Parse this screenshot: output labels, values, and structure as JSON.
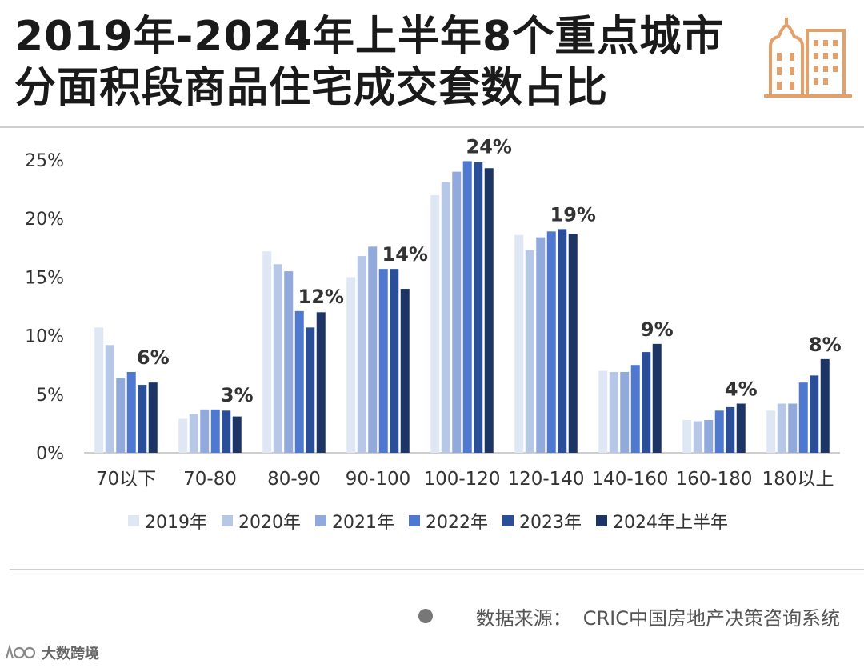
{
  "title": "2019年-2024年上半年8个重点城市分面积段商品住宅成交套数占比",
  "source": {
    "label": "数据来源：",
    "text": "CRIC中国房地产决策咨询系统"
  },
  "brand": {
    "name": "大数跨境",
    "logo_icon": "dashuju-logo-icon"
  },
  "title_icon": "building-icon",
  "chart_data": {
    "type": "bar",
    "title": "",
    "xlabel": "",
    "ylabel": "",
    "ylim": [
      0,
      25
    ],
    "yticks": [
      0,
      5,
      10,
      15,
      20,
      25
    ],
    "ytick_labels": [
      "0%",
      "5%",
      "10%",
      "15%",
      "20%",
      "25%"
    ],
    "grid": false,
    "legend_position": "bottom",
    "categories": [
      "70以下",
      "70-80",
      "80-90",
      "90-100",
      "100-120",
      "120-140",
      "140-160",
      "160-180",
      "180以上"
    ],
    "series": [
      {
        "name": "2019年",
        "color": "#dfe7f5",
        "values": [
          10.7,
          2.9,
          17.2,
          15.0,
          22.0,
          18.6,
          7.0,
          2.8,
          3.6
        ]
      },
      {
        "name": "2020年",
        "color": "#b7c8e7",
        "values": [
          9.2,
          3.3,
          16.1,
          16.8,
          23.1,
          17.3,
          6.9,
          2.7,
          4.2
        ]
      },
      {
        "name": "2021年",
        "color": "#91a9db",
        "values": [
          6.4,
          3.7,
          15.5,
          17.6,
          24.0,
          18.4,
          6.9,
          2.8,
          4.2
        ]
      },
      {
        "name": "2022年",
        "color": "#4f79d0",
        "values": [
          6.9,
          3.7,
          12.1,
          15.7,
          24.9,
          18.9,
          7.5,
          3.6,
          6.0
        ]
      },
      {
        "name": "2023年",
        "color": "#2b4e98",
        "values": [
          5.8,
          3.6,
          10.7,
          15.7,
          24.8,
          19.1,
          8.6,
          3.9,
          6.6
        ]
      },
      {
        "name": "2024年上半年",
        "color": "#1d3564",
        "values": [
          6.0,
          3.1,
          12.0,
          14.0,
          24.3,
          18.7,
          9.3,
          4.2,
          8.0
        ]
      }
    ],
    "data_labels": [
      "6%",
      "3%",
      "12%",
      "14%",
      "24%",
      "19%",
      "9%",
      "4%",
      "8%"
    ]
  }
}
